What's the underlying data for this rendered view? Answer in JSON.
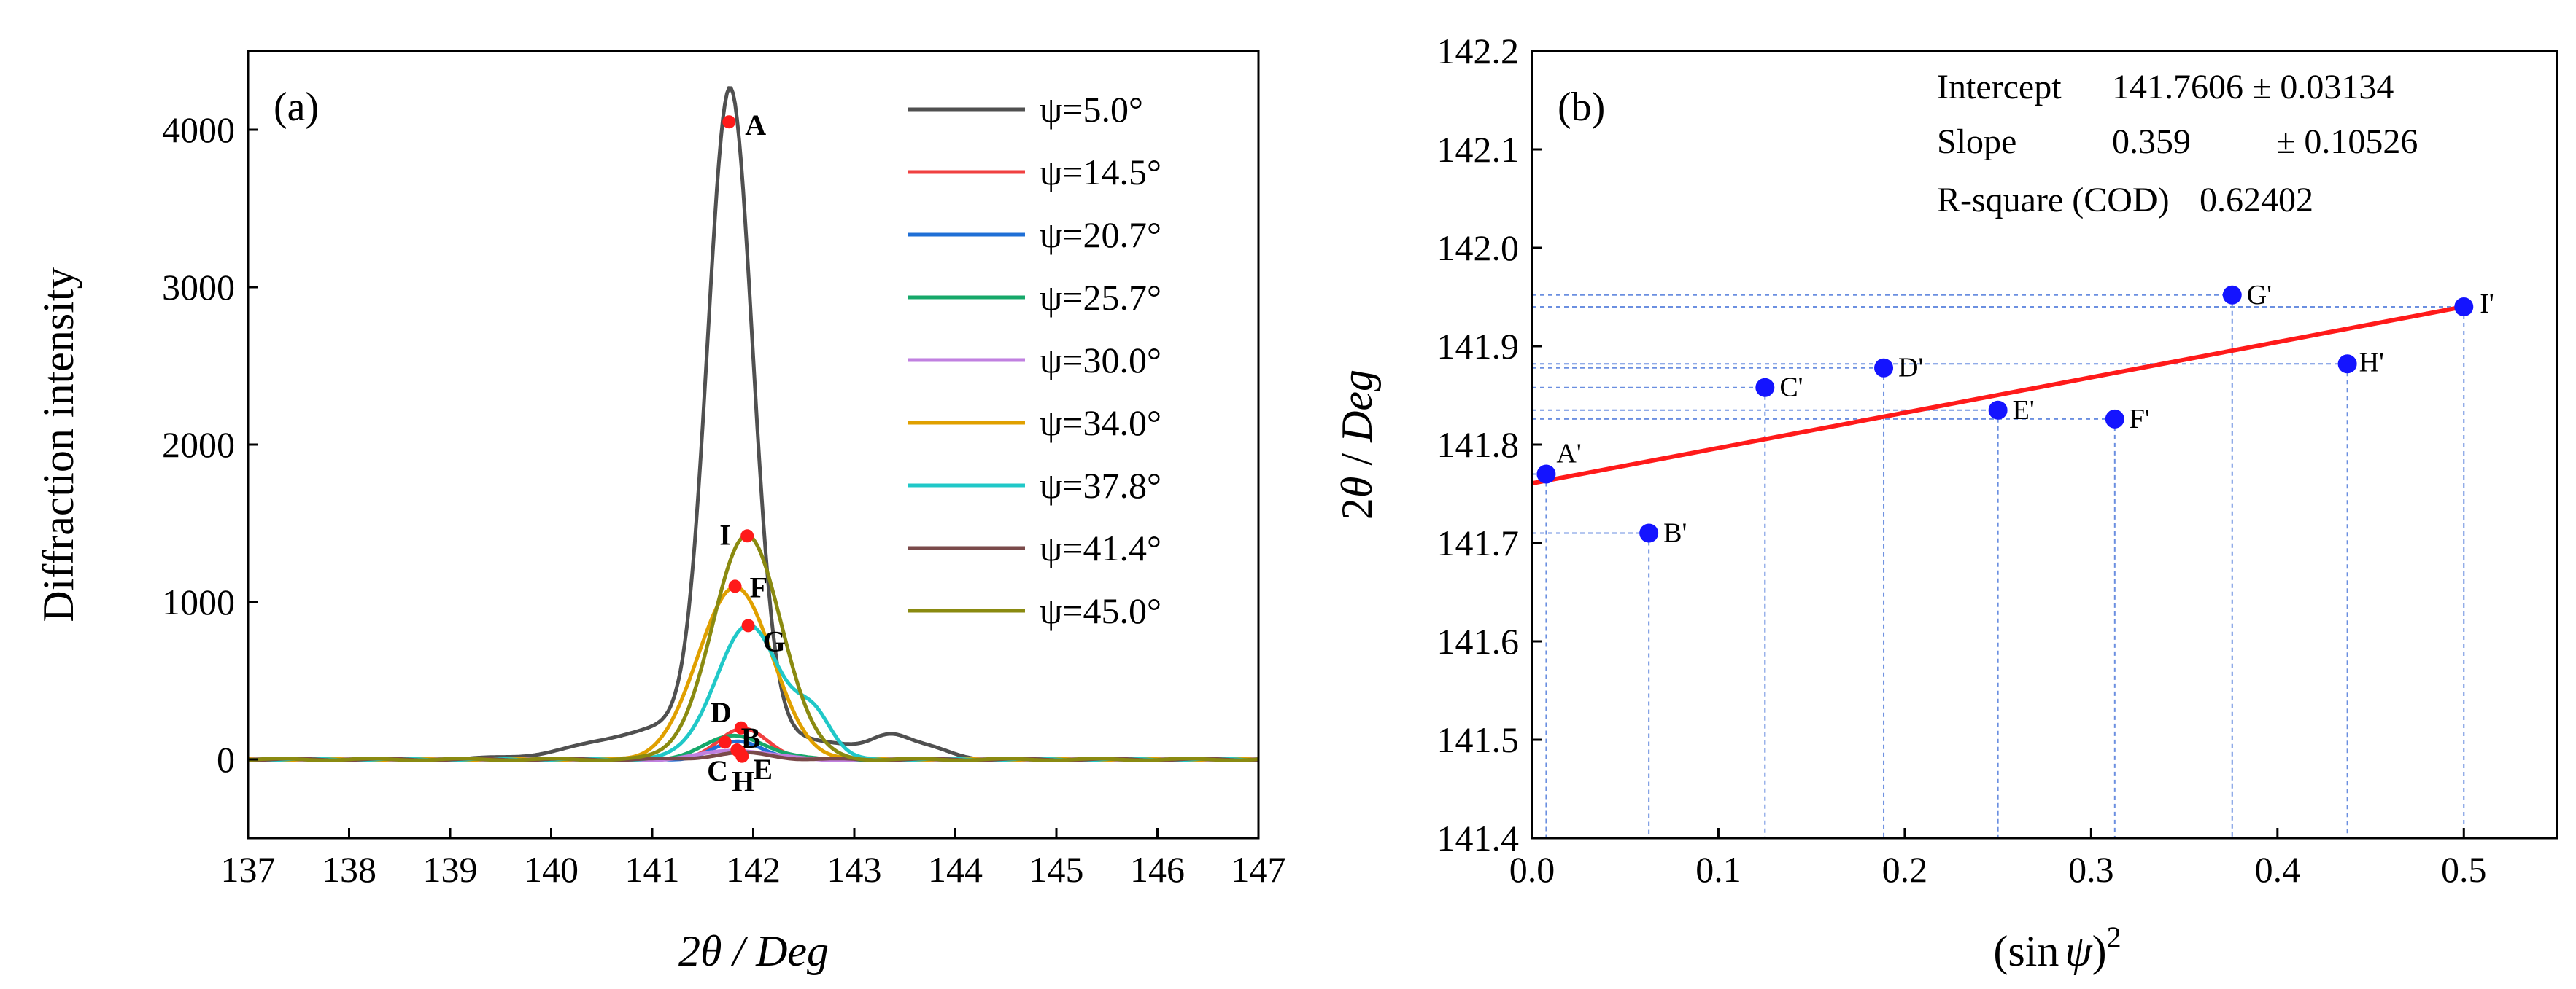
{
  "chart_data": [
    {
      "type": "line",
      "panel_label": "(a)",
      "xlabel": "2θ / Deg",
      "ylabel": "Diffraction intensity",
      "xlim": [
        137,
        147
      ],
      "ylim": [
        -500,
        4500
      ],
      "xticks": [
        "137",
        "138",
        "139",
        "140",
        "141",
        "142",
        "143",
        "144",
        "145",
        "146",
        "147"
      ],
      "yticks": [
        "0",
        "1000",
        "2000",
        "3000",
        "4000"
      ],
      "series": [
        {
          "name": "ψ=5.0°",
          "psi": "5.0",
          "color": "#505050",
          "peaks": [
            [
              141.77,
              4050,
              0.22
            ],
            [
              141.75,
              200,
              0.9
            ],
            [
              140.9,
              60,
              0.6
            ],
            [
              143.35,
              110,
              0.18
            ],
            [
              143.7,
              60,
              0.22
            ]
          ]
        },
        {
          "name": "ψ=14.5°",
          "psi": "14.5",
          "color": "#f04040",
          "peaks": [
            [
              141.9,
              190,
              0.25
            ]
          ]
        },
        {
          "name": "ψ=20.7°",
          "psi": "20.7",
          "color": "#1f6fd6",
          "peaks": [
            [
              141.86,
              110,
              0.25
            ]
          ]
        },
        {
          "name": "ψ=25.7°",
          "psi": "25.7",
          "color": "#16a86a",
          "peaks": [
            [
              141.83,
              150,
              0.3
            ]
          ]
        },
        {
          "name": "ψ=30.0°",
          "psi": "30.0",
          "color": "#c080e0",
          "peaks": [
            [
              141.84,
              60,
              0.3
            ]
          ]
        },
        {
          "name": "ψ=34.0°",
          "psi": "34.0",
          "color": "#e0a000",
          "peaks": [
            [
              141.82,
              1100,
              0.36
            ]
          ]
        },
        {
          "name": "ψ=37.8°",
          "psi": "37.8",
          "color": "#20c8c8",
          "peaks": [
            [
              141.95,
              850,
              0.32
            ],
            [
              142.6,
              250,
              0.18
            ]
          ]
        },
        {
          "name": "ψ=41.4°",
          "psi": "41.4",
          "color": "#7a4a4a",
          "peaks": [
            [
              141.88,
              40,
              0.3
            ]
          ]
        },
        {
          "name": "ψ=45.0°",
          "psi": "45.0",
          "color": "#8a8a10",
          "peaks": [
            [
              141.94,
              1420,
              0.34
            ]
          ]
        }
      ],
      "points": [
        {
          "label": "A",
          "x": 141.76,
          "y": 4050
        },
        {
          "label": "I",
          "x": 141.94,
          "y": 1420
        },
        {
          "label": "F",
          "x": 141.82,
          "y": 1100
        },
        {
          "label": "G",
          "x": 141.95,
          "y": 850
        },
        {
          "label": "D",
          "x": 141.88,
          "y": 200
        },
        {
          "label": "B",
          "x": 141.72,
          "y": 110
        },
        {
          "label": "C",
          "x": 141.86,
          "y": 50
        },
        {
          "label": "E",
          "x": 141.84,
          "y": 60
        },
        {
          "label": "H",
          "x": 141.89,
          "y": 20
        }
      ]
    },
    {
      "type": "scatter",
      "panel_label": "(b)",
      "xlabel_parts": [
        "(sin",
        "ψ",
        ")",
        "2"
      ],
      "ylabel_parts": [
        "2",
        "θ",
        " / ",
        "Deg"
      ],
      "xlim": [
        0,
        0.55
      ],
      "ylim": [
        141.4,
        142.2
      ],
      "xticks": [
        "0.0",
        "0.1",
        "0.2",
        "0.3",
        "0.4",
        "0.5"
      ],
      "yticks": [
        "141.4",
        "141.5",
        "141.6",
        "141.7",
        "141.8",
        "141.9",
        "142.0",
        "142.1",
        "142.2"
      ],
      "fit": {
        "intercept": 141.7606,
        "slope": 0.359,
        "x_range": [
          0.0,
          0.5
        ]
      },
      "stats": {
        "intercept_label": "Intercept",
        "intercept_value": "141.7606 ± 0.03134",
        "slope_label": "Slope",
        "slope_value": "0.359",
        "slope_err": "± 0.10526",
        "r2_label": "R-square (COD)",
        "r2_value": "0.62402"
      },
      "points": [
        {
          "label": "A'",
          "x": 0.0076,
          "y": 141.77
        },
        {
          "label": "B'",
          "x": 0.0627,
          "y": 141.71
        },
        {
          "label": "C'",
          "x": 0.125,
          "y": 141.858
        },
        {
          "label": "D'",
          "x": 0.1887,
          "y": 141.878
        },
        {
          "label": "E'",
          "x": 0.25,
          "y": 141.835
        },
        {
          "label": "F'",
          "x": 0.3127,
          "y": 141.826
        },
        {
          "label": "G'",
          "x": 0.3757,
          "y": 141.952
        },
        {
          "label": "H'",
          "x": 0.4375,
          "y": 141.882
        },
        {
          "label": "I'",
          "x": 0.5,
          "y": 141.94
        }
      ]
    }
  ]
}
